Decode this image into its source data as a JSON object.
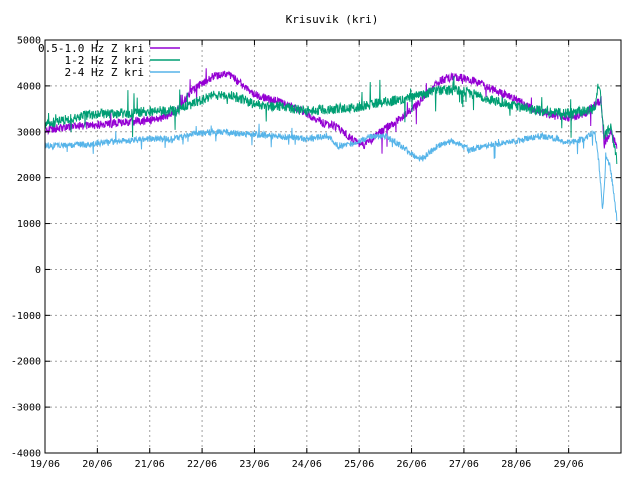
{
  "chart_data": {
    "type": "line",
    "title": "Krisuvik (kri)",
    "xlabel": "",
    "ylabel": "",
    "x_ticks": [
      "19/06",
      "20/06",
      "21/06",
      "22/06",
      "23/06",
      "24/06",
      "25/06",
      "26/06",
      "27/06",
      "28/06",
      "29/06"
    ],
    "x_range": [
      0,
      11
    ],
    "ylim": [
      -4000,
      5000
    ],
    "y_ticks": [
      -4000,
      -3000,
      -2000,
      -1000,
      0,
      1000,
      2000,
      3000,
      4000,
      5000
    ],
    "grid": true,
    "legend_position": "top-left",
    "series": [
      {
        "name": "0.5-1.0 Hz Z kri",
        "color": "#9400d3",
        "noise": 90,
        "points": [
          [
            0,
            3050
          ],
          [
            0.5,
            3100
          ],
          [
            1,
            3150
          ],
          [
            1.5,
            3200
          ],
          [
            2,
            3250
          ],
          [
            2.5,
            3400
          ],
          [
            2.8,
            3900
          ],
          [
            3.2,
            4200
          ],
          [
            3.5,
            4250
          ],
          [
            3.8,
            4000
          ],
          [
            4,
            3800
          ],
          [
            4.5,
            3650
          ],
          [
            5,
            3400
          ],
          [
            5.3,
            3200
          ],
          [
            5.6,
            3100
          ],
          [
            5.9,
            2800
          ],
          [
            6.1,
            2700
          ],
          [
            6.4,
            3000
          ],
          [
            6.8,
            3300
          ],
          [
            7.2,
            3700
          ],
          [
            7.5,
            4100
          ],
          [
            7.8,
            4200
          ],
          [
            8.1,
            4150
          ],
          [
            8.5,
            3950
          ],
          [
            9,
            3700
          ],
          [
            9.3,
            3500
          ],
          [
            9.7,
            3350
          ],
          [
            10,
            3300
          ],
          [
            10.3,
            3400
          ],
          [
            10.5,
            3600
          ],
          [
            10.62,
            3700
          ],
          [
            10.68,
            2700
          ],
          [
            10.8,
            3000
          ],
          [
            10.92,
            2700
          ]
        ]
      },
      {
        "name": "1-2 Hz Z kri",
        "color": "#009e73",
        "noise": 110,
        "points": [
          [
            0,
            3150
          ],
          [
            0.5,
            3300
          ],
          [
            1,
            3400
          ],
          [
            1.5,
            3400
          ],
          [
            2,
            3450
          ],
          [
            2.5,
            3450
          ],
          [
            2.8,
            3600
          ],
          [
            3.2,
            3800
          ],
          [
            3.5,
            3800
          ],
          [
            3.8,
            3700
          ],
          [
            4,
            3600
          ],
          [
            4.5,
            3550
          ],
          [
            5,
            3450
          ],
          [
            5.5,
            3500
          ],
          [
            6,
            3550
          ],
          [
            6.5,
            3650
          ],
          [
            7,
            3750
          ],
          [
            7.5,
            3900
          ],
          [
            7.8,
            3900
          ],
          [
            8.1,
            3850
          ],
          [
            8.5,
            3700
          ],
          [
            9,
            3550
          ],
          [
            9.5,
            3450
          ],
          [
            10,
            3400
          ],
          [
            10.3,
            3450
          ],
          [
            10.5,
            3500
          ],
          [
            10.58,
            4100
          ],
          [
            10.68,
            2900
          ],
          [
            10.8,
            3100
          ],
          [
            10.92,
            2400
          ]
        ]
      },
      {
        "name": "2-4 Hz Z kri",
        "color": "#56b4e9",
        "noise": 70,
        "points": [
          [
            0,
            2700
          ],
          [
            0.5,
            2700
          ],
          [
            1,
            2750
          ],
          [
            1.5,
            2800
          ],
          [
            2,
            2850
          ],
          [
            2.5,
            2850
          ],
          [
            2.8,
            2950
          ],
          [
            3.2,
            3000
          ],
          [
            3.5,
            3000
          ],
          [
            3.8,
            2950
          ],
          [
            4,
            2950
          ],
          [
            4.5,
            2900
          ],
          [
            5,
            2850
          ],
          [
            5.4,
            2900
          ],
          [
            5.6,
            2700
          ],
          [
            5.9,
            2750
          ],
          [
            6.2,
            2900
          ],
          [
            6.5,
            2900
          ],
          [
            6.8,
            2700
          ],
          [
            7,
            2500
          ],
          [
            7.2,
            2400
          ],
          [
            7.5,
            2700
          ],
          [
            7.8,
            2800
          ],
          [
            8.1,
            2600
          ],
          [
            8.4,
            2700
          ],
          [
            8.8,
            2750
          ],
          [
            9.2,
            2850
          ],
          [
            9.5,
            2900
          ],
          [
            9.8,
            2850
          ],
          [
            10,
            2750
          ],
          [
            10.3,
            2850
          ],
          [
            10.5,
            3000
          ],
          [
            10.58,
            2300
          ],
          [
            10.65,
            1300
          ],
          [
            10.72,
            2500
          ],
          [
            10.8,
            2200
          ],
          [
            10.92,
            1100
          ]
        ]
      }
    ]
  }
}
